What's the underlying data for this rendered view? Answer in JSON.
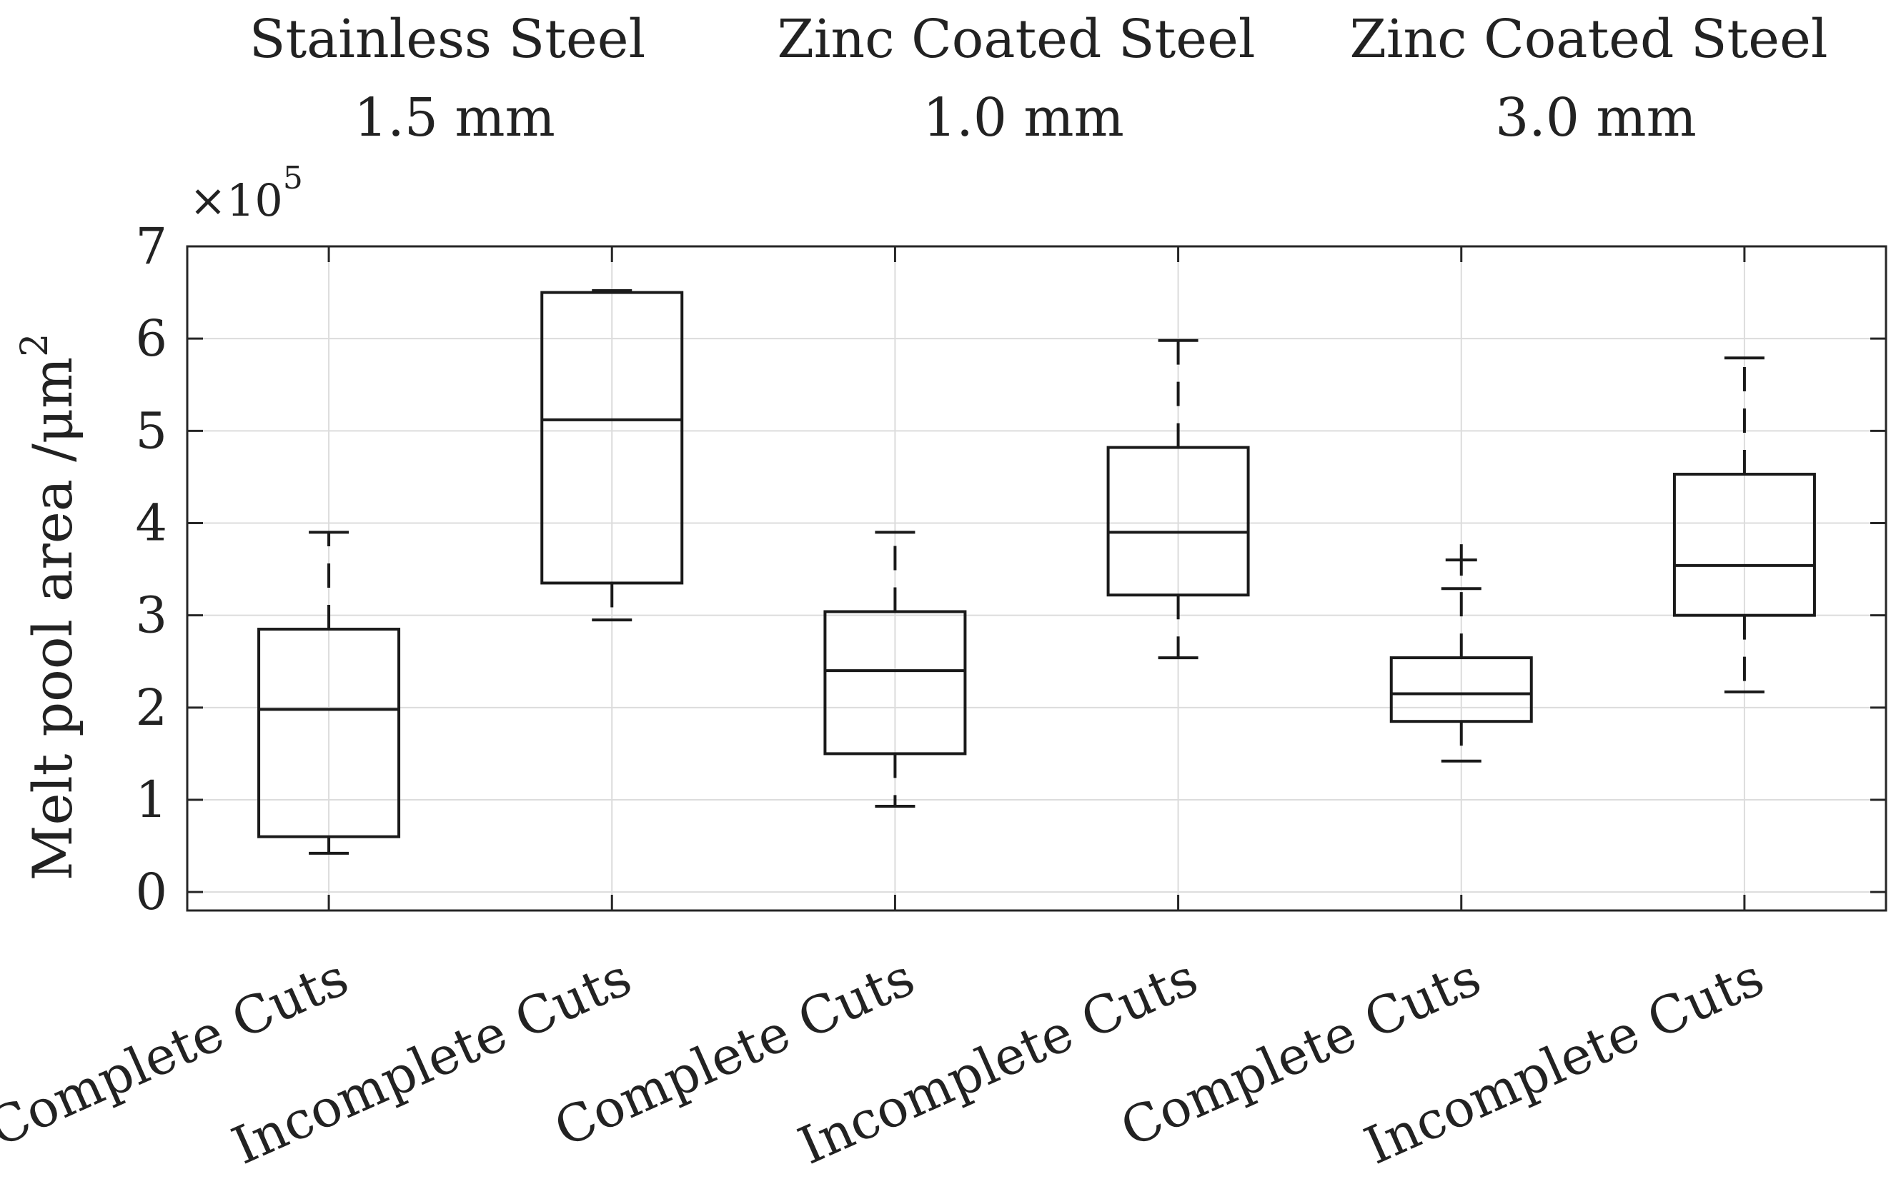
{
  "chart_data": {
    "type": "boxplot",
    "ylabel": "Melt pool area /μm²",
    "ylabel_base": "Melt pool area /μm",
    "ylabel_sup": "2",
    "multiplier_base": "×10",
    "multiplier_exp": "5",
    "ylim": [
      -0.2,
      7
    ],
    "yticks": [
      0,
      1,
      2,
      3,
      4,
      5,
      6,
      7
    ],
    "ytick_labels": [
      "0",
      "1",
      "2",
      "3",
      "4",
      "5",
      "6",
      "7"
    ],
    "grid": true,
    "groups": [
      {
        "title_line1": "Stainless Steel",
        "title_line2": "1.5 mm"
      },
      {
        "title_line1": "Zinc Coated Steel",
        "title_line2": "1.0 mm"
      },
      {
        "title_line1": "Zinc Coated Steel",
        "title_line2": "3.0 mm"
      }
    ],
    "categories": [
      "Complete Cuts",
      "Incomplete Cuts",
      "Complete Cuts",
      "Incomplete Cuts",
      "Complete Cuts",
      "Incomplete Cuts"
    ],
    "boxes": [
      {
        "label": "Complete Cuts",
        "whisker_low": 0.42,
        "q1": 0.6,
        "median": 1.98,
        "q3": 2.85,
        "whisker_high": 3.9,
        "outliers": []
      },
      {
        "label": "Incomplete Cuts",
        "whisker_low": 2.95,
        "q1": 3.35,
        "median": 5.12,
        "q3": 6.5,
        "whisker_high": 6.52,
        "outliers": []
      },
      {
        "label": "Complete Cuts",
        "whisker_low": 0.93,
        "q1": 1.5,
        "median": 2.4,
        "q3": 3.04,
        "whisker_high": 3.9,
        "outliers": []
      },
      {
        "label": "Incomplete Cuts",
        "whisker_low": 2.54,
        "q1": 3.22,
        "median": 3.9,
        "q3": 4.82,
        "whisker_high": 5.98,
        "outliers": []
      },
      {
        "label": "Complete Cuts",
        "whisker_low": 1.42,
        "q1": 1.85,
        "median": 2.15,
        "q3": 2.54,
        "whisker_high": 3.29,
        "outliers": [
          3.6
        ]
      },
      {
        "label": "Incomplete Cuts",
        "whisker_low": 2.17,
        "q1": 3.0,
        "median": 3.54,
        "q3": 4.53,
        "whisker_high": 5.79,
        "outliers": []
      }
    ]
  }
}
